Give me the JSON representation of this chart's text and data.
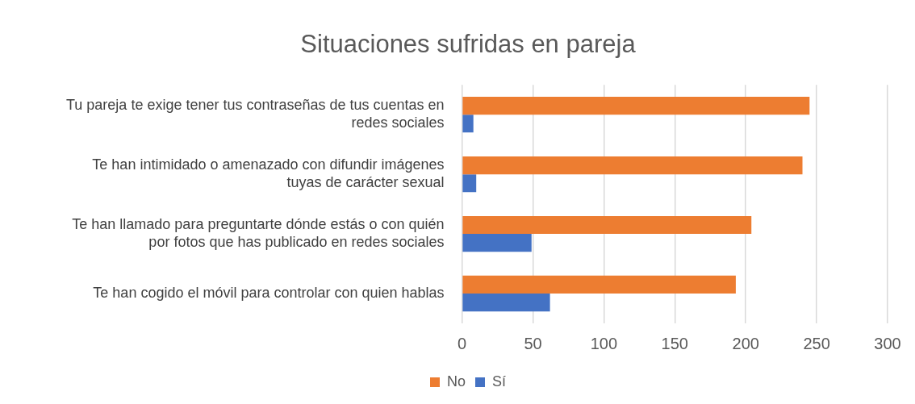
{
  "chart_data": {
    "type": "bar",
    "orientation": "horizontal",
    "title": "Situaciones sufridas en pareja",
    "categories": [
      "Tu pareja te exige tener tus contraseñas de tus cuentas en redes sociales",
      "Te han intimidado o amenazado con difundir imágenes tuyas de carácter sexual",
      "Te han llamado para preguntarte dónde estás o con quién por fotos que has publicado en redes sociales",
      "Te han cogido el móvil para controlar con quien hablas"
    ],
    "series": [
      {
        "name": "No",
        "color": "#ed7d31",
        "values": [
          245,
          240,
          204,
          193
        ]
      },
      {
        "name": "Sí",
        "color": "#4472c4",
        "values": [
          8,
          10,
          49,
          62
        ]
      }
    ],
    "xlim": [
      0,
      300
    ],
    "xticks": [
      0,
      50,
      100,
      150,
      200,
      250,
      300
    ],
    "grid": "x",
    "legend": "bottom"
  }
}
